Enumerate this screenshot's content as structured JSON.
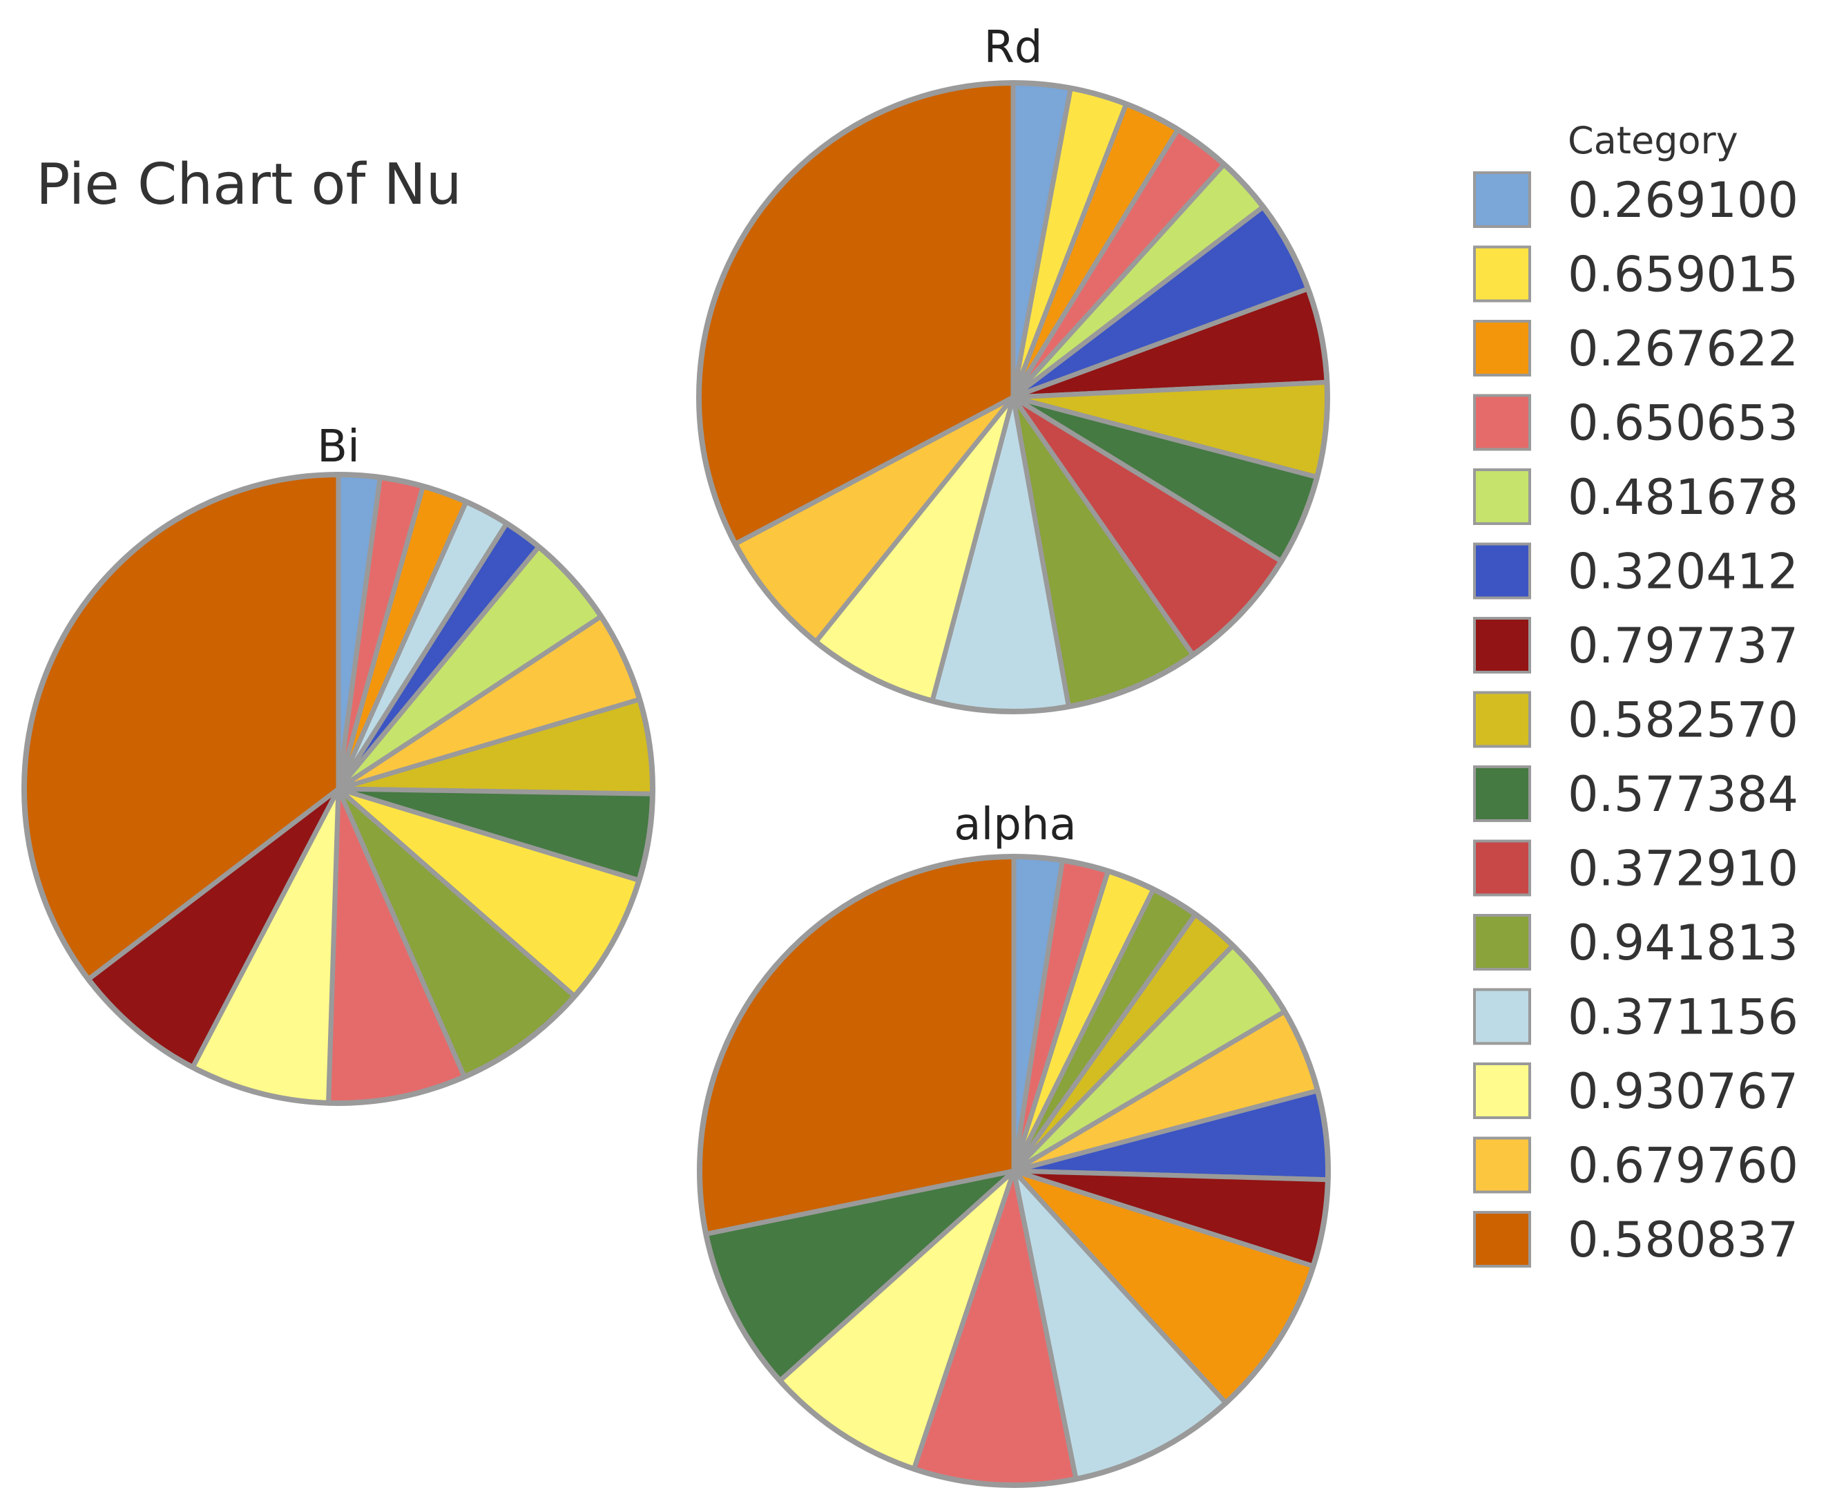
{
  "chart_data": {
    "type": "pie",
    "title": "Pie Chart of Nu",
    "legend": {
      "title": "Category",
      "placement": "right",
      "entries": [
        {
          "label": "0.269100",
          "color": "#7aa6d8"
        },
        {
          "label": "0.659015",
          "color": "#fde444"
        },
        {
          "label": "0.267622",
          "color": "#f4960b"
        },
        {
          "label": "0.650653",
          "color": "#e56b6b"
        },
        {
          "label": "0.481678",
          "color": "#c6e36c"
        },
        {
          "label": "0.320412",
          "color": "#3c55c2"
        },
        {
          "label": "0.797737",
          "color": "#921414"
        },
        {
          "label": "0.582570",
          "color": "#d4bd20"
        },
        {
          "label": "0.577384",
          "color": "#457a42"
        },
        {
          "label": "0.372910",
          "color": "#c84848"
        },
        {
          "label": "0.941813",
          "color": "#8aa33a"
        },
        {
          "label": "0.371156",
          "color": "#bddbe6"
        },
        {
          "label": "0.930767",
          "color": "#fffb8c"
        },
        {
          "label": "0.679760",
          "color": "#fdc63f"
        },
        {
          "label": "0.580837",
          "color": "#cc6200"
        }
      ]
    },
    "pies": [
      {
        "label": "Bi",
        "slices": [
          {
            "category": "0.269100",
            "value": 2.1
          },
          {
            "category": "0.650653",
            "value": 2.2
          },
          {
            "category": "0.267622",
            "value": 2.3
          },
          {
            "category": "0.371156",
            "value": 2.3
          },
          {
            "category": "0.320412",
            "value": 2.0
          },
          {
            "category": "0.481678",
            "value": 4.7
          },
          {
            "category": "0.679760",
            "value": 4.6
          },
          {
            "category": "0.582570",
            "value": 4.8
          },
          {
            "category": "0.577384",
            "value": 4.4
          },
          {
            "category": "0.659015",
            "value": 6.7
          },
          {
            "category": "0.941813",
            "value": 6.9
          },
          {
            "category": "0.650653",
            "value": 7.0
          },
          {
            "category": "0.930767",
            "value": 7.1
          },
          {
            "category": "0.797737",
            "value": 6.9
          },
          {
            "category": "0.580837",
            "value": 35.0
          }
        ]
      },
      {
        "label": "Rd",
        "slices": [
          {
            "category": "0.269100",
            "value": 2.9
          },
          {
            "category": "0.659015",
            "value": 2.9
          },
          {
            "category": "0.267622",
            "value": 2.9
          },
          {
            "category": "0.650653",
            "value": 2.9
          },
          {
            "category": "0.481678",
            "value": 2.9
          },
          {
            "category": "0.320412",
            "value": 4.7
          },
          {
            "category": "0.797737",
            "value": 4.8
          },
          {
            "category": "0.582570",
            "value": 4.8
          },
          {
            "category": "0.577384",
            "value": 4.6
          },
          {
            "category": "0.372910",
            "value": 6.5
          },
          {
            "category": "0.941813",
            "value": 6.8
          },
          {
            "category": "0.371156",
            "value": 6.9
          },
          {
            "category": "0.930767",
            "value": 6.6
          },
          {
            "category": "0.679760",
            "value": 6.4
          },
          {
            "category": "0.580837",
            "value": 32.4
          }
        ]
      },
      {
        "label": "alpha",
        "slices": [
          {
            "category": "0.269100",
            "value": 2.5
          },
          {
            "category": "0.650653",
            "value": 2.4
          },
          {
            "category": "0.659015",
            "value": 2.5
          },
          {
            "category": "0.941813",
            "value": 2.5
          },
          {
            "category": "0.582570",
            "value": 2.5
          },
          {
            "category": "0.481678",
            "value": 4.3
          },
          {
            "category": "0.679760",
            "value": 4.4
          },
          {
            "category": "0.320412",
            "value": 4.6
          },
          {
            "category": "0.797737",
            "value": 4.5
          },
          {
            "category": "0.267622",
            "value": 8.4
          },
          {
            "category": "0.371156",
            "value": 8.7
          },
          {
            "category": "0.650653",
            "value": 8.4
          },
          {
            "category": "0.930767",
            "value": 8.3
          },
          {
            "category": "0.577384",
            "value": 8.5
          },
          {
            "category": "0.580837",
            "value": 28.5
          }
        ]
      }
    ]
  }
}
